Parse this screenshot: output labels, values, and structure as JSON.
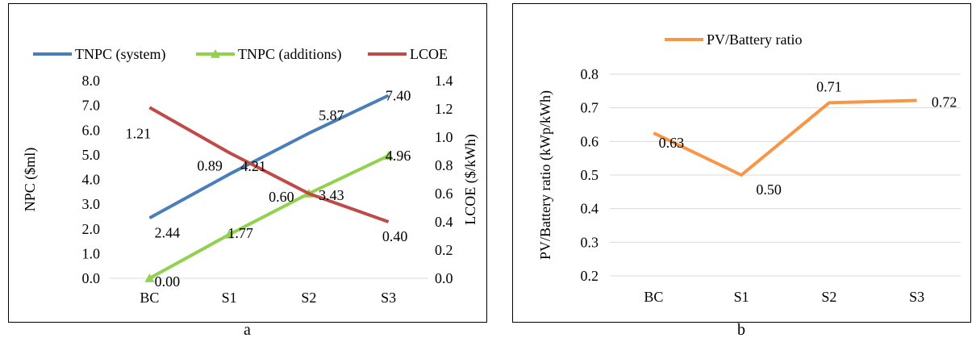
{
  "captions": {
    "a": "a",
    "b": "b"
  },
  "colors": {
    "system": "#4a7ebb",
    "additions": "#92d050",
    "lcoe": "#be4b48",
    "ratio": "#f79646"
  },
  "chart_data": [
    {
      "type": "line",
      "categories": [
        "BC",
        "S1",
        "S2",
        "S3"
      ],
      "series": [
        {
          "name": "TNPC (system)",
          "axis": "left",
          "marker": "none",
          "values": [
            2.44,
            4.21,
            5.87,
            7.4
          ],
          "labels": [
            "2.44",
            "4.21",
            "5.87",
            "7.40"
          ]
        },
        {
          "name": "TNPC (additions)",
          "axis": "left",
          "marker": "triangle",
          "values": [
            0.0,
            1.77,
            3.43,
            4.96
          ],
          "labels": [
            "0.00",
            "1.77",
            "3.43",
            "4.96"
          ]
        },
        {
          "name": "LCOE",
          "axis": "right",
          "marker": "none",
          "values": [
            1.21,
            0.89,
            0.6,
            0.4
          ],
          "labels": [
            "1.21",
            "0.89",
            "0.60",
            "0.40"
          ]
        }
      ],
      "ylabel": "NPC ($ml)",
      "ylabel_right": "LCOE ($/kWh)",
      "ylim": [
        0,
        8
      ],
      "ylim_right": [
        0,
        1.4
      ],
      "yticks": [
        "0.0",
        "1.0",
        "2.0",
        "3.0",
        "4.0",
        "5.0",
        "6.0",
        "7.0",
        "8.0"
      ],
      "yticks_right": [
        "0.0",
        "0.2",
        "0.4",
        "0.6",
        "0.8",
        "1.0",
        "1.2",
        "1.4"
      ],
      "legend": "top",
      "grid": false
    },
    {
      "type": "line",
      "categories": [
        "BC",
        "S1",
        "S2",
        "S3"
      ],
      "series": [
        {
          "name": "PV/Battery ratio",
          "values": [
            0.625,
            0.5,
            0.715,
            0.722
          ],
          "labels": [
            "0.63",
            "0.50",
            "0.71",
            "0.72"
          ]
        }
      ],
      "ylabel": "PV/Battery ratio (kWp/kWh)",
      "ylim": [
        0.2,
        0.8
      ],
      "yticks": [
        "0.2",
        "0.3",
        "0.4",
        "0.5",
        "0.6",
        "0.7",
        "0.8"
      ],
      "legend": "top",
      "grid": true
    }
  ]
}
